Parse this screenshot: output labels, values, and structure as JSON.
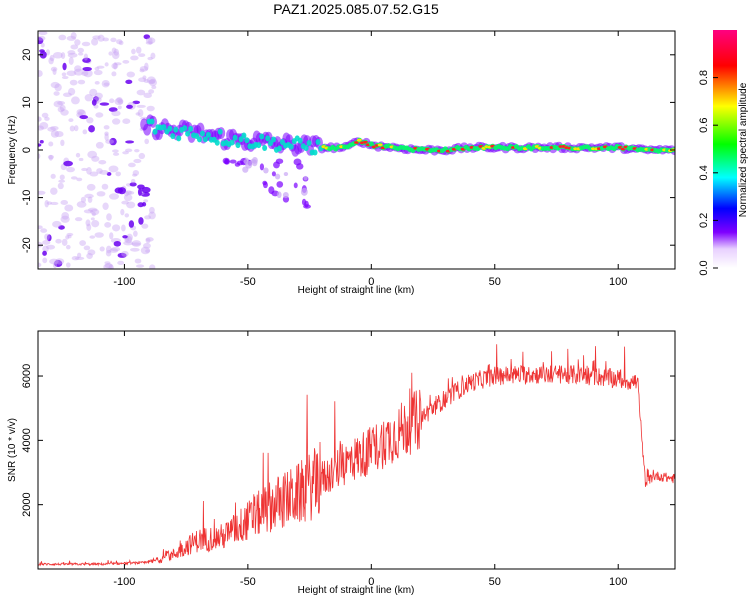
{
  "title": "PAZ1.2025.085.07.52.G15",
  "chart_data": [
    {
      "type": "heatmap",
      "title": "PAZ1.2025.085.07.52.G15",
      "xlabel": "Height of straight line (km)",
      "ylabel": "Frequency (Hz)",
      "xlim": [
        -135,
        123
      ],
      "ylim": [
        -25,
        25
      ],
      "xticks": [
        -100,
        -50,
        0,
        50,
        100
      ],
      "yticks": [
        -20,
        -10,
        0,
        10,
        20
      ],
      "xtick_labels": [
        "-100",
        "-50",
        "0",
        "50",
        "100"
      ],
      "ytick_labels": [
        "-20",
        "-10",
        "0",
        "10",
        "20"
      ],
      "colorbar": {
        "label": "Normalized spectral amplitude",
        "range": [
          0,
          1
        ],
        "ticks": [
          0.0,
          0.2,
          0.4,
          0.6,
          0.8
        ],
        "tick_labels": [
          "0.0",
          "0.2",
          "0.4",
          "0.6",
          "0.8"
        ],
        "colors": [
          "#ffffff",
          "#7f00ff",
          "#0000ff",
          "#00ffff",
          "#00ff00",
          "#ffff00",
          "#ff0000",
          "#ff0080"
        ]
      },
      "ridge": {
        "x": [
          -90,
          -80,
          -70,
          -60,
          -50,
          -40,
          -30,
          -20,
          -10,
          -5,
          0,
          10,
          20,
          30,
          40,
          50,
          60,
          70,
          80,
          90,
          100,
          110,
          120
        ],
        "y": [
          5,
          4,
          3.5,
          2.5,
          2,
          1.5,
          1,
          0.5,
          0.5,
          2,
          1,
          0.5,
          0,
          0,
          0.5,
          0.5,
          0.5,
          0.5,
          0.5,
          0.5,
          0.5,
          0,
          0
        ]
      }
    },
    {
      "type": "line",
      "xlabel": "Height of straight line (km)",
      "ylabel": "SNR (10 * v/v)",
      "xlim": [
        -135,
        123
      ],
      "ylim": [
        0,
        7400
      ],
      "xticks": [
        -100,
        -50,
        0,
        50,
        100
      ],
      "yticks": [
        2000,
        4000,
        6000
      ],
      "xtick_labels": [
        "-100",
        "-50",
        "0",
        "50",
        "100"
      ],
      "ytick_labels": [
        "2000",
        "4000",
        "6000"
      ],
      "color": "#ee3333",
      "envelope": {
        "x": [
          -135,
          -110,
          -90,
          -80,
          -75,
          -70,
          -60,
          -50,
          -40,
          -30,
          -20,
          -10,
          0,
          10,
          20,
          30,
          40,
          50,
          60,
          70,
          80,
          90,
          100,
          108,
          109,
          111,
          115,
          123
        ],
        "y": [
          150,
          150,
          200,
          450,
          700,
          900,
          1000,
          1500,
          2000,
          2300,
          2800,
          3300,
          3700,
          4200,
          4700,
          5300,
          5800,
          6000,
          6050,
          6050,
          6050,
          6000,
          5900,
          5800,
          4500,
          2700,
          2900,
          2800
        ]
      }
    }
  ]
}
